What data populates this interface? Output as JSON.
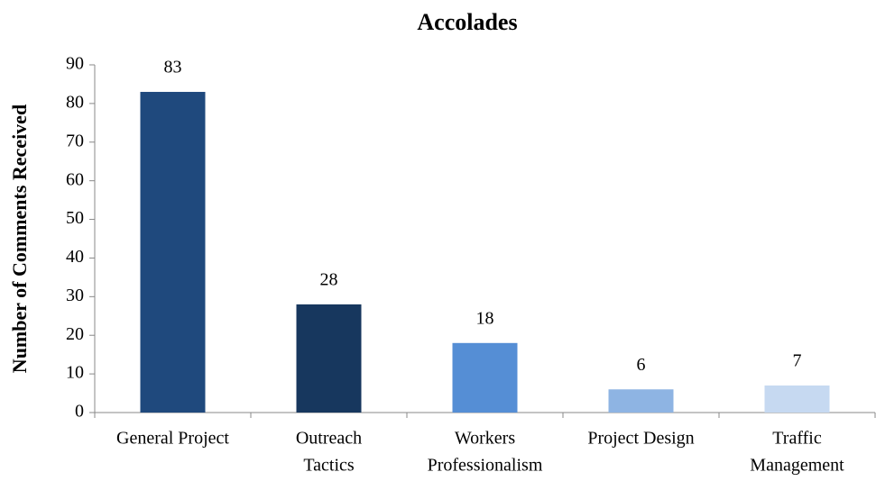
{
  "chart_data": {
    "type": "bar",
    "title": "Accolades",
    "ylabel": "Number of Comments Received",
    "categories": [
      [
        "General Project"
      ],
      [
        "Outreach",
        "Tactics"
      ],
      [
        "Workers",
        "Professionalism"
      ],
      [
        "Project Design"
      ],
      [
        "Traffic",
        "Management"
      ]
    ],
    "values": [
      83,
      28,
      18,
      6,
      7
    ],
    "colors": [
      "#1f497d",
      "#17375e",
      "#558ed5",
      "#8eb4e3",
      "#c6d9f1"
    ],
    "ylim": [
      0,
      90
    ],
    "yticks": [
      0,
      10,
      20,
      30,
      40,
      50,
      60,
      70,
      80,
      90
    ],
    "grid": false
  }
}
